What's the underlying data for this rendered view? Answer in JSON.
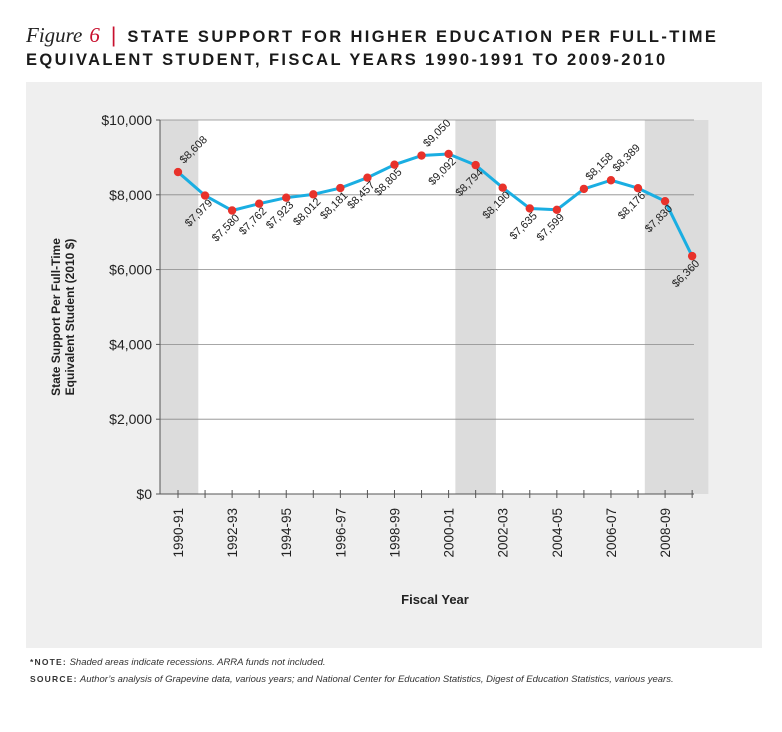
{
  "header": {
    "figure_word": "Figure",
    "figure_number": "6",
    "separator": "|",
    "title_line1": "STATE SUPPORT FOR HIGHER EDUCATION PER FULL-TIME",
    "title_line2": "EQUIVALENT STUDENT, FISCAL YEARS 1990-1991 TO 2009-2010"
  },
  "colors": {
    "accent": "#c8102e",
    "line": "#1aaee2",
    "marker": "#e8322b",
    "recession": "#dcdcdc",
    "panel": "#efefef"
  },
  "chart_data": {
    "type": "line",
    "title": "STATE SUPPORT FOR HIGHER EDUCATION PER FULL-TIME EQUIVALENT STUDENT, FISCAL YEARS 1990-1991 TO 2009-2010",
    "xlabel": "Fiscal Year",
    "ylabel": "State Support Per Full-Time Equivalent Student (2010 $)",
    "ylim": [
      0,
      10000
    ],
    "yticks": [
      0,
      2000,
      4000,
      6000,
      8000,
      10000
    ],
    "ytick_labels": [
      "$0",
      "$2,000",
      "$4,000",
      "$6,000",
      "$8,000",
      "$10,000"
    ],
    "x": [
      "1990-91",
      "1991-92",
      "1992-93",
      "1993-94",
      "1994-95",
      "1995-96",
      "1996-97",
      "1997-98",
      "1998-99",
      "1999-00",
      "2000-01",
      "2001-02",
      "2002-03",
      "2003-04",
      "2004-05",
      "2005-06",
      "2006-07",
      "2007-08",
      "2008-09",
      "2009-10"
    ],
    "xtick_labels": [
      "1990-91",
      "",
      "1992-93",
      "",
      "1994-95",
      "",
      "1996-97",
      "",
      "1998-99",
      "",
      "2000-01",
      "",
      "2002-03",
      "",
      "2004-05",
      "",
      "2006-07",
      "",
      "2008-09",
      ""
    ],
    "values": [
      8608,
      7979,
      7580,
      7762,
      7923,
      8012,
      8181,
      8457,
      8805,
      9050,
      9092,
      8794,
      8190,
      7635,
      7599,
      8158,
      8389,
      8176,
      7830,
      6360
    ],
    "data_labels": [
      "$8,608",
      "$7,979",
      "$7,580",
      "$7,762",
      "$7,923",
      "$8,012",
      "$8,181",
      "$8,457",
      "$8,805",
      "$9,050",
      "$9,092",
      "$8,794",
      "$8,190",
      "$7,635",
      "$7,599",
      "$8,158",
      "$8,389",
      "$8,176",
      "$7,830",
      "$6,360"
    ],
    "recessions": [
      [
        "1990-91",
        "1990-91"
      ],
      [
        "2001-02",
        "2001-02"
      ],
      [
        "2008-09",
        "2009-10"
      ]
    ],
    "grid": true
  },
  "notes": {
    "note_label": "*NOTE:",
    "note_text": "Shaded areas indicate recessions. ARRA funds not included.",
    "source_label": "SOURCE:",
    "source_text": "Author’s analysis of Grapevine data, various years; and National Center for Education Statistics, Digest of Education Statistics, various years."
  }
}
